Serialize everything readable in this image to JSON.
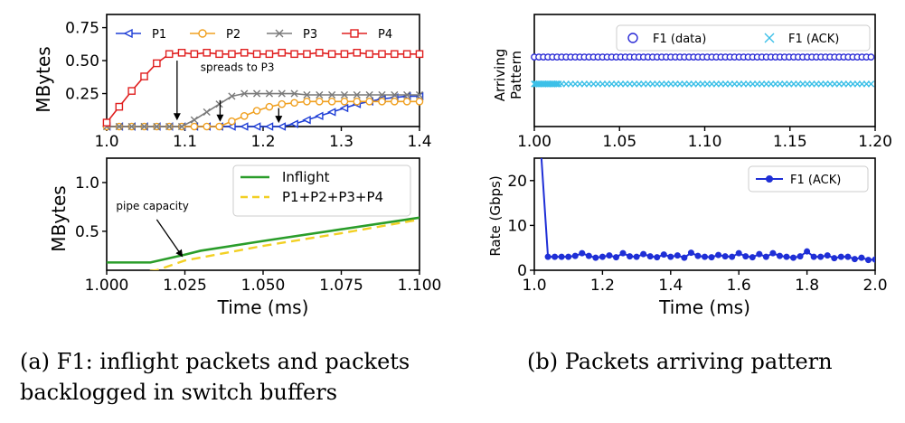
{
  "captions": {
    "a_line1": "(a)  F1: inflight packets and packets",
    "a_line2": "backlogged in switch buffers",
    "b": "(b)  Packets arriving pattern"
  },
  "chart_data": [
    {
      "id": "a-top",
      "type": "line",
      "ylabel": "MBytes",
      "xlim": [
        1.0,
        1.4
      ],
      "ylim": [
        0.0,
        0.85
      ],
      "xticks": [
        "1.0",
        "1.1",
        "1.2",
        "1.3",
        "1.4"
      ],
      "xtick_values": [
        1.0,
        1.1,
        1.2,
        1.3,
        1.4
      ],
      "yticks": [
        "0.25",
        "0.50",
        "0.75"
      ],
      "ytick_values": [
        0.25,
        0.5,
        0.75
      ],
      "legend_position": "top",
      "series": [
        {
          "name": "P1",
          "color": "#1f3fd6",
          "marker": "triangle-left",
          "x": [
            1.0,
            1.016,
            1.032,
            1.048,
            1.064,
            1.08,
            1.096,
            1.112,
            1.128,
            1.144,
            1.16,
            1.176,
            1.192,
            1.208,
            1.224,
            1.24,
            1.256,
            1.272,
            1.288,
            1.304,
            1.32,
            1.336,
            1.352,
            1.368,
            1.384,
            1.4
          ],
          "y": [
            0.0,
            0.0,
            0.0,
            0.0,
            0.0,
            0.0,
            0.0,
            0.0,
            0.0,
            0.0,
            0.0,
            0.0,
            0.0,
            0.0,
            0.0,
            0.02,
            0.05,
            0.08,
            0.11,
            0.14,
            0.17,
            0.19,
            0.21,
            0.22,
            0.23,
            0.23
          ]
        },
        {
          "name": "P2",
          "color": "#f0a020",
          "marker": "circle",
          "x": [
            1.0,
            1.016,
            1.032,
            1.048,
            1.064,
            1.08,
            1.096,
            1.112,
            1.128,
            1.144,
            1.16,
            1.176,
            1.192,
            1.208,
            1.224,
            1.24,
            1.256,
            1.272,
            1.288,
            1.304,
            1.32,
            1.336,
            1.352,
            1.368,
            1.384,
            1.4
          ],
          "y": [
            0.0,
            0.0,
            0.0,
            0.0,
            0.0,
            0.0,
            0.0,
            0.0,
            0.0,
            0.0,
            0.04,
            0.08,
            0.12,
            0.15,
            0.17,
            0.18,
            0.19,
            0.19,
            0.19,
            0.19,
            0.19,
            0.19,
            0.19,
            0.19,
            0.19,
            0.19
          ]
        },
        {
          "name": "P3",
          "color": "#7a7a7a",
          "marker": "x",
          "x": [
            1.0,
            1.016,
            1.032,
            1.048,
            1.064,
            1.08,
            1.096,
            1.112,
            1.128,
            1.144,
            1.16,
            1.176,
            1.192,
            1.208,
            1.224,
            1.24,
            1.256,
            1.272,
            1.288,
            1.304,
            1.32,
            1.336,
            1.352,
            1.368,
            1.384,
            1.4
          ],
          "y": [
            0.0,
            0.0,
            0.0,
            0.0,
            0.0,
            0.0,
            0.0,
            0.05,
            0.11,
            0.17,
            0.23,
            0.25,
            0.25,
            0.25,
            0.25,
            0.25,
            0.24,
            0.24,
            0.24,
            0.24,
            0.24,
            0.24,
            0.24,
            0.24,
            0.24,
            0.24
          ]
        },
        {
          "name": "P4",
          "color": "#e02020",
          "marker": "square",
          "x": [
            1.0,
            1.016,
            1.032,
            1.048,
            1.064,
            1.08,
            1.096,
            1.112,
            1.128,
            1.144,
            1.16,
            1.176,
            1.192,
            1.208,
            1.224,
            1.24,
            1.256,
            1.272,
            1.288,
            1.304,
            1.32,
            1.336,
            1.352,
            1.368,
            1.384,
            1.4
          ],
          "y": [
            0.03,
            0.15,
            0.27,
            0.38,
            0.48,
            0.55,
            0.56,
            0.55,
            0.56,
            0.55,
            0.55,
            0.56,
            0.55,
            0.55,
            0.56,
            0.55,
            0.55,
            0.56,
            0.55,
            0.55,
            0.56,
            0.55,
            0.55,
            0.55,
            0.55,
            0.55
          ]
        }
      ],
      "annotations": [
        {
          "text": "spreads to P3",
          "x": 1.12,
          "y": 0.45
        },
        {
          "text": "",
          "arrow_x": 1.09,
          "arrow_from": 0.5,
          "arrow_to": 0.06
        },
        {
          "text": "",
          "arrow_x": 1.145,
          "arrow_from": 0.2,
          "arrow_to": 0.05
        },
        {
          "text": "",
          "arrow_x": 1.22,
          "arrow_from": 0.14,
          "arrow_to": 0.04
        }
      ]
    },
    {
      "id": "a-bottom",
      "type": "line",
      "xlabel": "Time (ms)",
      "ylabel": "MBytes",
      "xlim": [
        1.0,
        1.1
      ],
      "ylim": [
        0.1,
        1.25
      ],
      "xticks": [
        "1.000",
        "1.025",
        "1.050",
        "1.075",
        "1.100"
      ],
      "xtick_values": [
        1.0,
        1.025,
        1.05,
        1.075,
        1.1
      ],
      "yticks": [
        "0.5",
        "1.0"
      ],
      "ytick_values": [
        0.5,
        1.0
      ],
      "legend_position": "top-right",
      "series": [
        {
          "name": "Inflight",
          "color": "#2a9d2a",
          "style": "solid",
          "x": [
            1.0,
            1.014,
            1.025,
            1.03,
            1.05,
            1.075,
            1.1
          ],
          "y": [
            0.18,
            0.18,
            0.26,
            0.3,
            0.4,
            0.52,
            0.64
          ]
        },
        {
          "name": "P1+P2+P3+P4",
          "color": "#f2d024",
          "style": "dashed",
          "x": [
            1.0,
            1.016,
            1.025,
            1.05,
            1.075,
            1.1
          ],
          "y": [
            0.05,
            0.1,
            0.2,
            0.35,
            0.48,
            0.62
          ]
        }
      ],
      "annotations": [
        {
          "text": "pipe capacity",
          "x": 1.003,
          "y": 0.72
        },
        {
          "text": "",
          "arrow_from_x": 1.016,
          "arrow_from_y": 0.62,
          "arrow_to_x": 1.024,
          "arrow_to_y": 0.25
        }
      ]
    },
    {
      "id": "b-top",
      "type": "scatter",
      "ylabel": "Arriving Pattern",
      "xlim": [
        1.0,
        1.2
      ],
      "xticks": [
        "1.00",
        "1.05",
        "1.10",
        "1.15",
        "1.20"
      ],
      "xtick_values": [
        1.0,
        1.05,
        1.1,
        1.15,
        1.2
      ],
      "legend_position": "top-right",
      "series": [
        {
          "name": "F1 (data)",
          "color": "#2a2ad6",
          "marker": "circle-open",
          "level": 0.62,
          "x_start": 1.0,
          "x_end": 1.2,
          "spacing": 0.00267
        },
        {
          "name": "F1 (ACK)",
          "color": "#3cc0e8",
          "marker": "x",
          "level": 0.38,
          "x_start": 1.0,
          "x_end": 1.2,
          "spacing": 0.00267,
          "dense_until": 1.015
        }
      ]
    },
    {
      "id": "b-bottom",
      "type": "line",
      "xlabel": "Time (ms)",
      "ylabel": "Rate (Gbps)",
      "xlim": [
        1.0,
        2.0
      ],
      "ylim": [
        0,
        25
      ],
      "xticks": [
        "1.0",
        "1.2",
        "1.4",
        "1.6",
        "1.8",
        "2.0"
      ],
      "xtick_values": [
        1.0,
        1.2,
        1.4,
        1.6,
        1.8,
        2.0
      ],
      "yticks": [
        "0",
        "10",
        "20"
      ],
      "ytick_values": [
        0,
        10,
        20
      ],
      "legend_position": "top-right",
      "series": [
        {
          "name": "F1 (ACK)",
          "color": "#1f2fd6",
          "marker": "dot",
          "x": [
            1.02,
            1.04,
            1.06,
            1.08,
            1.1,
            1.12,
            1.14,
            1.16,
            1.18,
            1.2,
            1.22,
            1.24,
            1.26,
            1.28,
            1.3,
            1.32,
            1.34,
            1.36,
            1.38,
            1.4,
            1.42,
            1.44,
            1.46,
            1.48,
            1.5,
            1.52,
            1.54,
            1.56,
            1.58,
            1.6,
            1.62,
            1.64,
            1.66,
            1.68,
            1.7,
            1.72,
            1.74,
            1.76,
            1.78,
            1.8,
            1.82,
            1.84,
            1.86,
            1.88,
            1.9,
            1.92,
            1.94,
            1.96,
            1.98,
            2.0
          ],
          "y": [
            26,
            3.0,
            3.0,
            3.0,
            3.0,
            3.2,
            3.8,
            3.2,
            2.8,
            3.0,
            3.3,
            2.9,
            3.8,
            3.1,
            3.0,
            3.6,
            3.1,
            2.9,
            3.5,
            3.0,
            3.3,
            2.8,
            3.9,
            3.2,
            3.0,
            2.9,
            3.4,
            3.1,
            3.0,
            3.8,
            3.1,
            2.9,
            3.6,
            3.0,
            3.8,
            3.2,
            3.0,
            2.8,
            3.1,
            4.2,
            3.0,
            3.0,
            3.3,
            2.7,
            3.0,
            3.0,
            2.5,
            2.8,
            2.3,
            2.4
          ]
        }
      ]
    }
  ]
}
